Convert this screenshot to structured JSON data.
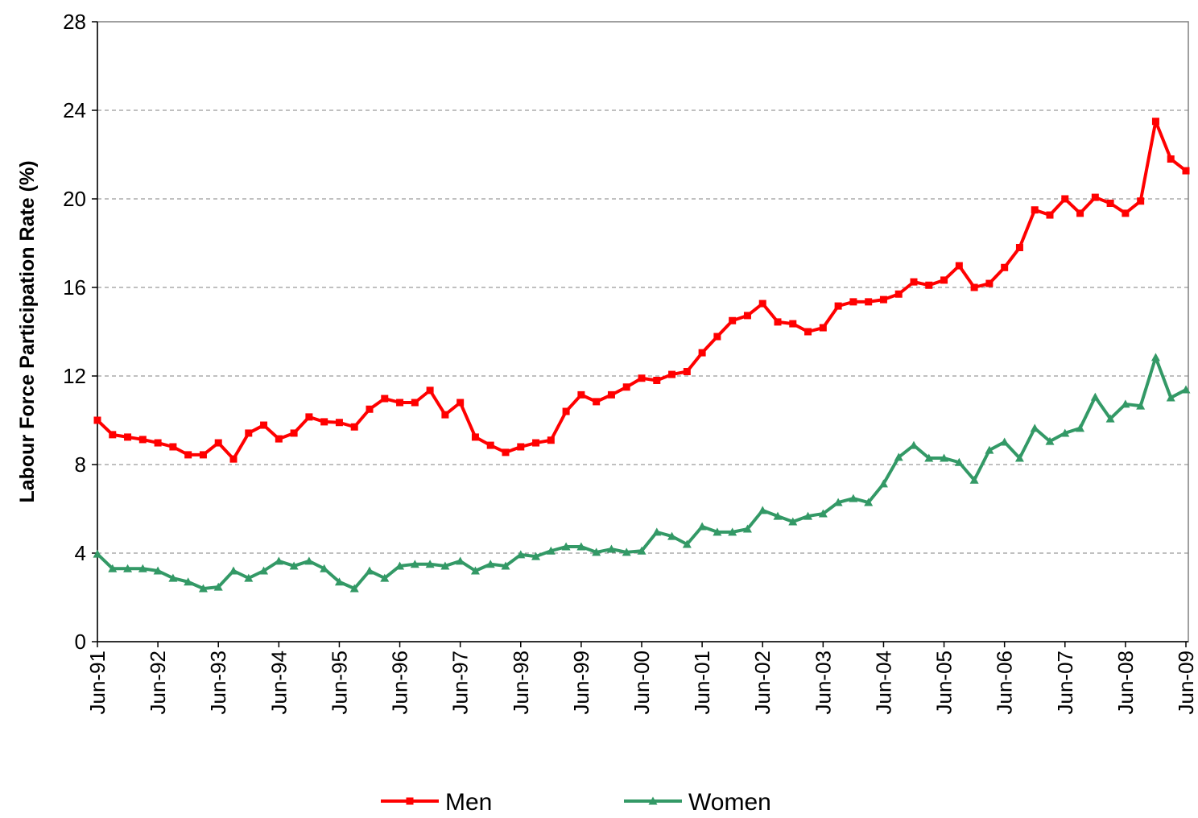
{
  "chart_data": {
    "type": "line",
    "y_label": "Labour Force Participation Rate (%)",
    "categories": [
      "Jun-91",
      null,
      null,
      null,
      "Jun-92",
      null,
      null,
      null,
      "Jun-93",
      null,
      null,
      null,
      "Jun-94",
      null,
      null,
      null,
      "Jun-95",
      null,
      null,
      null,
      "Jun-96",
      null,
      null,
      null,
      "Jun-97",
      null,
      null,
      null,
      "Jun-98",
      null,
      null,
      null,
      "Jun-99",
      null,
      null,
      null,
      "Jun-00",
      null,
      null,
      null,
      "Jun-01",
      null,
      null,
      null,
      "Jun-02",
      null,
      null,
      null,
      "Jun-03",
      null,
      null,
      null,
      "Jun-04",
      null,
      null,
      null,
      "Jun-05",
      null,
      null,
      null,
      "Jun-06",
      null,
      null,
      null,
      "Jun-07",
      null,
      null,
      null,
      "Jun-08",
      null,
      null,
      null,
      "Jun-09"
    ],
    "series": [
      {
        "name": "Men",
        "color": "#ff0000",
        "marker": "square",
        "values": [
          10.0,
          9.35,
          9.24,
          9.13,
          8.98,
          8.8,
          8.44,
          8.44,
          8.98,
          8.25,
          9.42,
          9.78,
          9.16,
          9.42,
          10.15,
          9.93,
          9.9,
          9.7,
          10.5,
          10.98,
          10.8,
          10.8,
          11.35,
          10.25,
          10.8,
          9.24,
          8.87,
          8.55,
          8.8,
          8.98,
          9.1,
          10.4,
          11.15,
          10.84,
          11.15,
          11.5,
          11.9,
          11.8,
          12.07,
          12.2,
          13.05,
          13.78,
          14.5,
          14.73,
          15.27,
          14.44,
          14.36,
          14.0,
          14.18,
          15.16,
          15.35,
          15.35,
          15.45,
          15.7,
          16.25,
          16.1,
          16.33,
          16.98,
          16.0,
          16.18,
          16.9,
          17.8,
          19.5,
          19.27,
          20.0,
          19.35,
          20.07,
          19.8,
          19.35,
          19.9,
          23.5,
          21.8,
          21.27
        ]
      },
      {
        "name": "Women",
        "color": "#339966",
        "marker": "triangle",
        "values": [
          3.96,
          3.3,
          3.3,
          3.3,
          3.2,
          2.87,
          2.7,
          2.4,
          2.47,
          3.2,
          2.87,
          3.2,
          3.64,
          3.42,
          3.64,
          3.3,
          2.7,
          2.4,
          3.2,
          2.87,
          3.42,
          3.5,
          3.5,
          3.42,
          3.64,
          3.2,
          3.5,
          3.42,
          3.93,
          3.85,
          4.1,
          4.29,
          4.29,
          4.04,
          4.18,
          4.04,
          4.1,
          4.95,
          4.76,
          4.4,
          5.2,
          4.95,
          4.95,
          5.09,
          5.93,
          5.67,
          5.42,
          5.67,
          5.78,
          6.29,
          6.47,
          6.29,
          7.13,
          8.33,
          8.87,
          8.29,
          8.29,
          8.1,
          7.3,
          8.65,
          9.02,
          8.29,
          9.64,
          9.05,
          9.42,
          9.64,
          11.05,
          10.07,
          10.73,
          10.65,
          12.84,
          11.02,
          11.38
        ]
      }
    ],
    "ylim": [
      0,
      28
    ],
    "yticks": [
      0,
      4,
      8,
      12,
      16,
      20,
      24,
      28
    ],
    "grid": true,
    "legend": "bottom"
  }
}
